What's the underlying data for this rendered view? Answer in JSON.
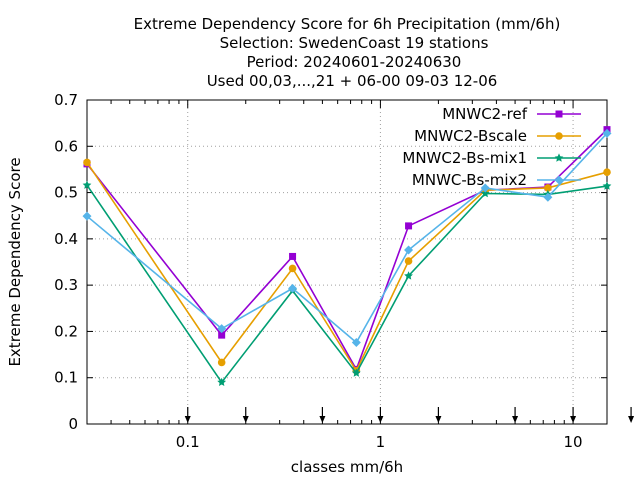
{
  "chart_data": {
    "type": "line",
    "title_lines": [
      "Extreme Dependency Score  for 6h Precipitation (mm/6h)",
      "Selection: SwedenCoast      19 stations",
      "Period: 20240601-20240630",
      "Used 00,03,...,21 + 06-00 09-03 12-06"
    ],
    "xlabel": "classes mm/6h",
    "ylabel": "Extreme Dependency Score",
    "xscale": "log",
    "xlim": [
      0.03,
      15
    ],
    "ylim": [
      0,
      0.7
    ],
    "x_ticks": [
      0.1,
      1,
      10
    ],
    "x_tick_labels": [
      "0.1",
      "1",
      "10"
    ],
    "y_ticks": [
      0,
      0.1,
      0.2,
      0.3,
      0.4,
      0.5,
      0.6,
      0.7
    ],
    "y_tick_labels": [
      "0",
      "0.1",
      "0.2",
      "0.3",
      "0.4",
      "0.5",
      "0.6",
      "0.7"
    ],
    "grid": true,
    "legend_position": "top-right",
    "threshold_arrows": [
      0.1,
      0.2,
      0.5,
      1,
      2,
      5,
      10,
      20
    ],
    "x": [
      0.03,
      0.15,
      0.35,
      0.75,
      1.4,
      3.5,
      7.4,
      15
    ],
    "series": [
      {
        "name": "MNWC2-ref",
        "color": "#9400d3",
        "marker": "filled-square",
        "values": [
          0.562,
          0.192,
          0.362,
          0.118,
          0.428,
          0.505,
          0.512,
          0.636
        ]
      },
      {
        "name": "MNWC2-Bscale",
        "color": "#e69f00",
        "marker": "filled-circle",
        "values": [
          0.565,
          0.133,
          0.336,
          0.115,
          0.352,
          0.505,
          0.51,
          0.544
        ]
      },
      {
        "name": "MNWC2-Bs-mix1",
        "color": "#009e73",
        "marker": "filled-star",
        "values": [
          0.516,
          0.09,
          0.288,
          0.11,
          0.32,
          0.498,
          0.496,
          0.514
        ]
      },
      {
        "name": "MNWC-Bs-mix2",
        "color": "#56b4e9",
        "marker": "filled-diamond",
        "values": [
          0.449,
          0.206,
          0.293,
          0.176,
          0.376,
          0.51,
          0.49,
          0.628
        ]
      }
    ]
  }
}
